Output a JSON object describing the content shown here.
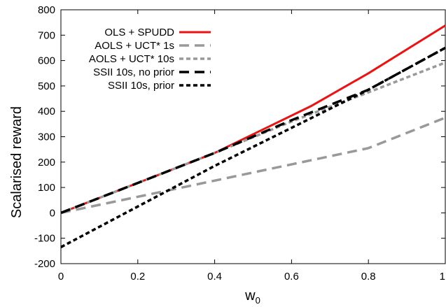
{
  "chart_data": {
    "type": "line",
    "title": "",
    "xlabel": "w",
    "xlabel_subscript": "0",
    "ylabel": "Scalarised reward",
    "xlim": [
      0,
      1
    ],
    "ylim": [
      -200,
      800
    ],
    "x_ticks": [
      0,
      0.2,
      0.4,
      0.6,
      0.8,
      1
    ],
    "x_tick_labels": [
      "0",
      "0.2",
      "0.4",
      "0.6",
      "0.8",
      "1"
    ],
    "y_ticks": [
      -200,
      -100,
      0,
      100,
      200,
      300,
      400,
      500,
      600,
      700,
      800
    ],
    "y_tick_labels": [
      "-200",
      "-100",
      "0",
      "100",
      "200",
      "300",
      "400",
      "500",
      "600",
      "700",
      "800"
    ],
    "grid": false,
    "legend_position": "top-left",
    "series": [
      {
        "name": "OLS + SPUDD",
        "color": "#ee1111",
        "style": "solid",
        "x": [
          0,
          0.2,
          0.4,
          0.65,
          0.8,
          1.0
        ],
        "y": [
          0,
          118,
          236,
          420,
          550,
          738
        ]
      },
      {
        "name": "AOLS + UCT* 1s",
        "color": "#999999",
        "style": "long-dash",
        "x": [
          0,
          0.3,
          0.8,
          1.0
        ],
        "y": [
          0,
          95,
          255,
          375
        ]
      },
      {
        "name": "AOLS + UCT* 10s",
        "color": "#999999",
        "style": "short-dash",
        "x": [
          0,
          0.2,
          0.4,
          0.6,
          0.8,
          1.0
        ],
        "y": [
          0,
          118,
          236,
          360,
          475,
          592
        ]
      },
      {
        "name": "SSII 10s, no prior",
        "color": "#000000",
        "style": "long-dash",
        "x": [
          0,
          0.2,
          0.4,
          0.6,
          0.8,
          1.0
        ],
        "y": [
          0,
          118,
          236,
          365,
          485,
          650
        ]
      },
      {
        "name": "SSII 10s, prior",
        "color": "#000000",
        "style": "short-dash",
        "x": [
          0,
          0.2,
          0.4,
          0.6,
          0.8,
          1.0
        ],
        "y": [
          -135,
          25,
          185,
          335,
          485,
          650
        ]
      }
    ]
  }
}
